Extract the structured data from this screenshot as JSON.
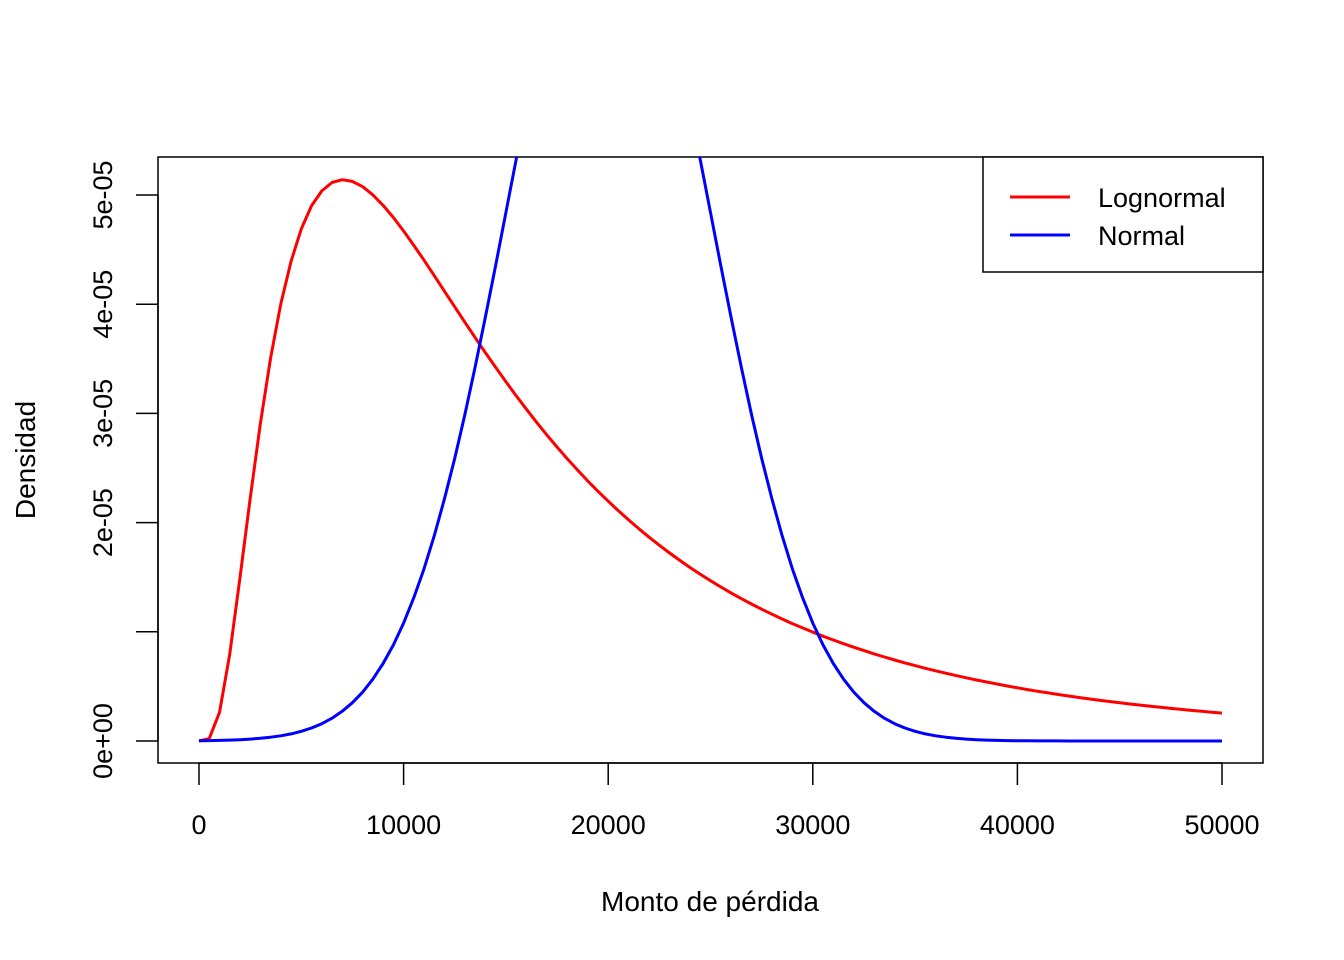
{
  "chart_data": {
    "type": "line",
    "title": "",
    "xlabel": "Monto de pérdida",
    "ylabel": "Densidad",
    "xlim": [
      0,
      50000
    ],
    "ylim": [
      0,
      5.3e-05
    ],
    "x_ticks": [
      0,
      10000,
      20000,
      30000,
      40000,
      50000
    ],
    "x_tick_labels": [
      "0",
      "10000",
      "20000",
      "30000",
      "40000",
      "50000"
    ],
    "y_ticks": [
      0,
      1e-05,
      2e-05,
      3e-05,
      4e-05,
      5e-05
    ],
    "y_tick_labels": [
      "0e+00",
      "",
      "2e-05",
      "3e-05",
      "4e-05",
      "5e-05"
    ],
    "x": {
      "from": 0,
      "to": 50000,
      "step": 500
    },
    "series": [
      {
        "name": "Lognormal",
        "color": "#ff0000",
        "distribution": "lognormal",
        "meanlog": 9.5,
        "sdlog": 0.8
      },
      {
        "name": "Normal",
        "color": "#0000ff",
        "distribution": "normal",
        "mean": 20000,
        "sd": 5000
      }
    ],
    "legend": {
      "position": "top-right",
      "entries": [
        "Lognormal",
        "Normal"
      ]
    },
    "grid": false
  }
}
